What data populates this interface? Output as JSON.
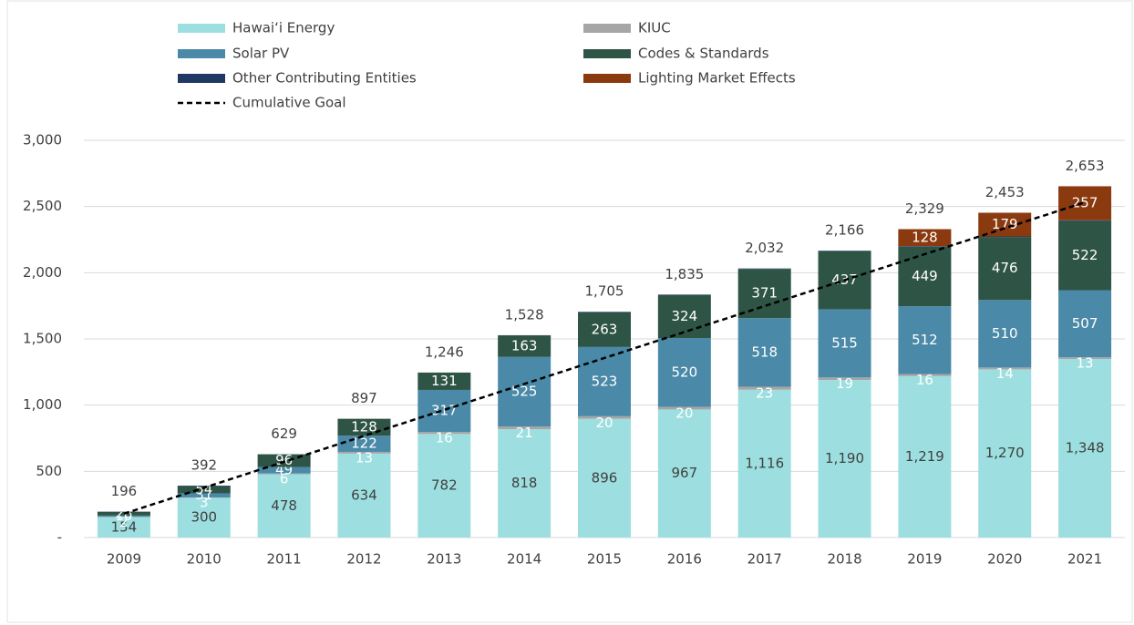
{
  "chart_data": {
    "type": "stacked_bar",
    "categories": [
      "2009",
      "2010",
      "2011",
      "2012",
      "2013",
      "2014",
      "2015",
      "2016",
      "2017",
      "2018",
      "2019",
      "2020",
      "2021"
    ],
    "series": [
      {
        "name": "Hawaiʻi Energy",
        "color": "#9ddfe0",
        "data_labels": true,
        "values": [
          154,
          300,
          478,
          634,
          782,
          818,
          896,
          967,
          1116,
          1190,
          1219,
          1270,
          1348
        ],
        "value_labels": [
          "154",
          "300",
          "478",
          "634",
          "782",
          "818",
          "896",
          "967",
          "1,116",
          "1,190",
          "1,219",
          "1,270",
          "1,348"
        ]
      },
      {
        "name": "KIUC",
        "color": "#a6a6a6",
        "data_labels": true,
        "values": [
          2,
          3,
          6,
          13,
          16,
          21,
          20,
          20,
          23,
          19,
          16,
          14,
          13
        ]
      },
      {
        "name": "Solar PV",
        "color": "#4a8aa8",
        "data_labels": true,
        "values": [
          10,
          31,
          49,
          122,
          317,
          525,
          523,
          520,
          518,
          515,
          512,
          510,
          507
        ]
      },
      {
        "name": "Codes & Standards",
        "color": "#2e5446",
        "data_labels": true,
        "values": [
          28,
          54,
          96,
          128,
          131,
          163,
          263,
          324,
          371,
          437,
          449,
          476,
          522
        ]
      },
      {
        "name": "Other Contributing Entities",
        "color": "#1f3864",
        "data_labels": false,
        "values": [
          2,
          4,
          0,
          0,
          0,
          1,
          3,
          4,
          4,
          5,
          5,
          4,
          6
        ]
      },
      {
        "name": "Lighting Market Effects",
        "color": "#8b3a10",
        "data_labels": true,
        "values": [
          null,
          null,
          null,
          null,
          null,
          null,
          null,
          null,
          null,
          null,
          128,
          179,
          257
        ]
      }
    ],
    "goal": {
      "name": "Cumulative Goal",
      "color": "#000000",
      "values": [
        180,
        376,
        572,
        768,
        964,
        1160,
        1356,
        1552,
        1748,
        1944,
        2140,
        2336,
        2532
      ]
    },
    "totals": {
      "values": [
        196,
        392,
        629,
        897,
        1246,
        1528,
        1705,
        1835,
        2032,
        2166,
        2329,
        2453,
        2653
      ],
      "value_labels": [
        "196",
        "392",
        "629",
        "897",
        "1,246",
        "1,528",
        "1,705",
        "1,835",
        "2,032",
        "2,166",
        "2,329",
        "2,453",
        "2,653"
      ]
    },
    "ylim": [
      0,
      3000
    ],
    "yticks": [
      {
        "value": 0,
        "label": "-"
      },
      500,
      {
        "value": 1000,
        "label": "1,000"
      },
      {
        "value": 1500,
        "label": "1,500"
      },
      {
        "value": 2000,
        "label": "2,000"
      },
      {
        "value": 2500,
        "label": "2,500"
      },
      {
        "value": 3000,
        "label": "3,000"
      }
    ],
    "grid": true
  }
}
